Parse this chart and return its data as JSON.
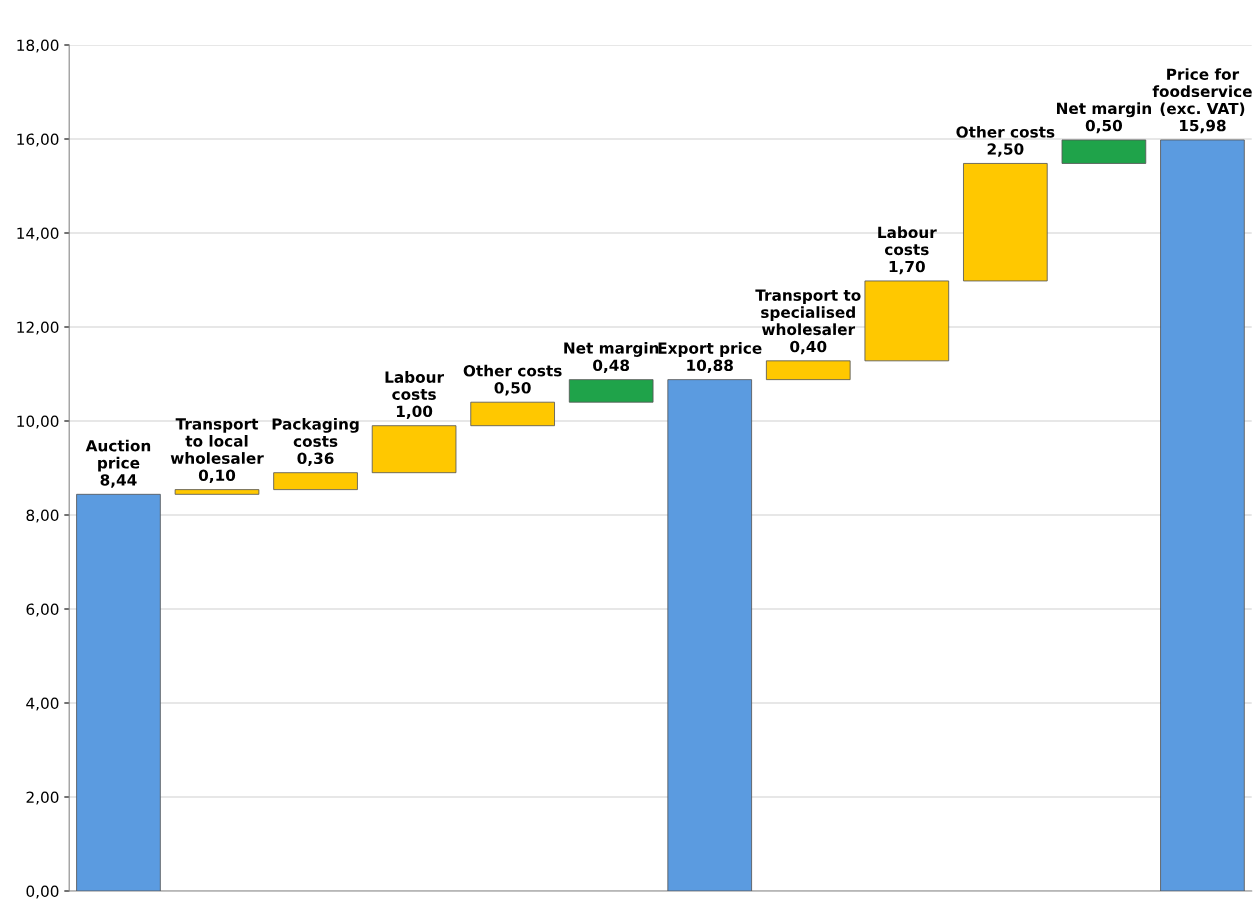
{
  "chart_data": {
    "type": "bar",
    "categories": [
      "Auction\nprice",
      "Transport\nto local\nwholesaler",
      "Packaging\ncosts",
      "Labour\ncosts",
      "Other costs",
      "Net margin",
      "Export price",
      "Transport to\nspecialised\nwholesaler",
      "Labour\ncosts",
      "Other costs",
      "Net margin",
      "Price for\nfoodservice\n(exc. VAT)"
    ],
    "values": [
      8.44,
      0.1,
      0.36,
      1.0,
      0.5,
      0.48,
      10.88,
      0.4,
      1.7,
      2.5,
      0.5,
      15.98
    ],
    "base": [
      0,
      8.44,
      8.54,
      8.9,
      9.9,
      10.4,
      0,
      10.88,
      11.28,
      12.98,
      15.48,
      0
    ],
    "colors": [
      "#5b9be0",
      "#ffc800",
      "#ffc800",
      "#ffc800",
      "#ffc800",
      "#1fa34a",
      "#5b9be0",
      "#ffc800",
      "#ffc800",
      "#ffc800",
      "#1fa34a",
      "#5b9be0"
    ],
    "value_labels": [
      "8,44",
      "0,10",
      "0,36",
      "1,00",
      "0,50",
      "0,48",
      "10,88",
      "0,40",
      "1,70",
      "2,50",
      "0,50",
      "15,98"
    ],
    "ylim": [
      0,
      18
    ],
    "yticks": [
      {
        "value": 0,
        "label": "0,00"
      },
      {
        "value": 2,
        "label": "2,00"
      },
      {
        "value": 4,
        "label": "4,00"
      },
      {
        "value": 6,
        "label": "6,00"
      },
      {
        "value": 8,
        "label": "8,00"
      },
      {
        "value": 10,
        "label": "10,00"
      },
      {
        "value": 12,
        "label": "12,00"
      },
      {
        "value": 14,
        "label": "14,00"
      },
      {
        "value": 16,
        "label": "16,00"
      },
      {
        "value": 18,
        "label": "18,00"
      }
    ],
    "grid": "y",
    "legend": false,
    "tick_labels": "y"
  }
}
